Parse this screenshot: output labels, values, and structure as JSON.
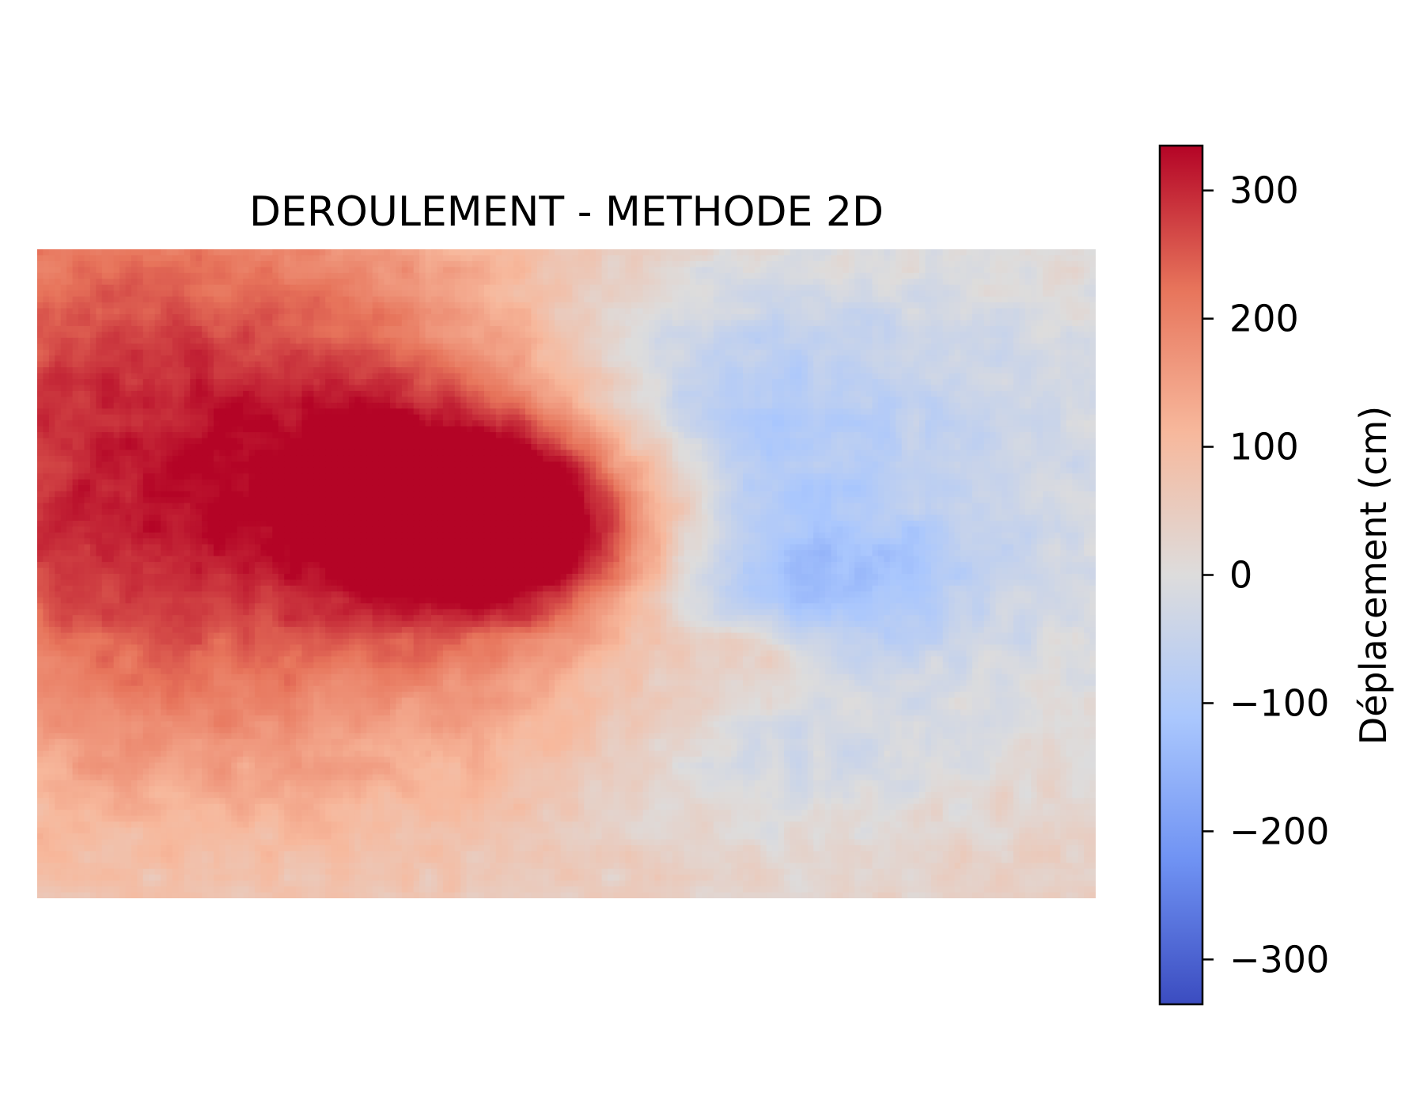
{
  "chart_data": {
    "type": "heatmap",
    "title": "DEROULEMENT - METHODE 2D",
    "xlabel": "",
    "ylabel": "",
    "axes_visible": false,
    "grid": false,
    "colormap": "coolwarm",
    "colormap_stops": [
      "#3b4cc0",
      "#6f92f3",
      "#aac7fd",
      "#dddcdc",
      "#f7b89c",
      "#e7745b",
      "#b40426"
    ],
    "colorbar": {
      "label": "Déplacement (cm)",
      "range": [
        -335,
        335
      ],
      "ticks": [
        -300,
        -200,
        -100,
        0,
        100,
        200,
        300
      ],
      "tick_labels": [
        "−300",
        "−200",
        "−100",
        "0",
        "100",
        "200",
        "300"
      ],
      "placement": "right"
    },
    "value_range": [
      -335,
      335
    ],
    "field_description": "Unwrapped displacement field: positive (red) lobe on left peaking near 330 cm at center-left, negative (blue) lobe in upper-center peaking near -200 cm, near-zero (grey) on right side and bottom."
  }
}
